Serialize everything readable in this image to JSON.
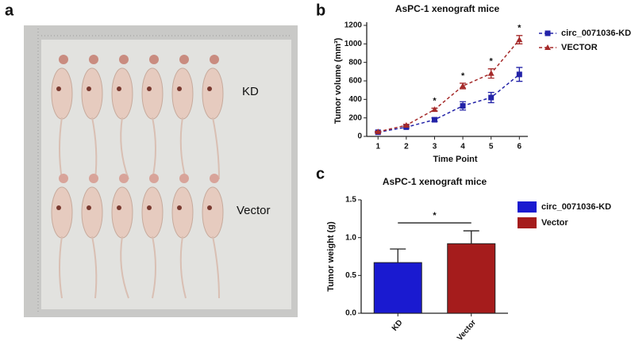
{
  "panels": [
    "a",
    "b",
    "c"
  ],
  "photo": {
    "labels": [
      "KD",
      "Vector"
    ]
  },
  "chart_data": [
    {
      "type": "line",
      "title": "AsPC-1 xenograft mice",
      "xlabel": "Time Point",
      "ylabel": "Tumor volume (mm³)",
      "x": [
        1,
        2,
        3,
        4,
        5,
        6
      ],
      "xlim": [
        0.6,
        6.3
      ],
      "xticks": [
        1,
        2,
        3,
        4,
        5,
        6
      ],
      "ylim": [
        0,
        1200
      ],
      "yticks": [
        0,
        200,
        400,
        600,
        800,
        1000,
        1200
      ],
      "series": [
        {
          "name": "circ_0071036-KD",
          "color": "#2323a8",
          "marker": "square",
          "values": [
            45,
            100,
            180,
            330,
            420,
            670
          ],
          "errors": [
            5,
            10,
            20,
            45,
            55,
            75
          ]
        },
        {
          "name": "VECTOR",
          "color": "#a52a2a",
          "marker": "triangle",
          "values": [
            50,
            120,
            290,
            545,
            680,
            1045
          ],
          "errors": [
            5,
            10,
            15,
            30,
            50,
            45
          ]
        }
      ],
      "annotations": [
        {
          "x": 3,
          "text": "*"
        },
        {
          "x": 4,
          "text": "*"
        },
        {
          "x": 5,
          "text": "*"
        },
        {
          "x": 6,
          "text": "*"
        }
      ]
    },
    {
      "type": "bar",
      "title": "AsPC-1 xenograft mice",
      "ylabel": "Tumor weight (g)",
      "categories": [
        "KD",
        "Vector"
      ],
      "ylim": [
        0,
        1.5
      ],
      "yticks": [
        {
          "value": 0,
          "label": "0.0"
        },
        {
          "value": 0.5,
          "label": "0.5"
        },
        {
          "value": 1,
          "label": "1.0"
        },
        {
          "value": 1.5,
          "label": "1.5"
        }
      ],
      "series": [
        {
          "name": "circ_0071036-KD",
          "color": "#1a1ad0",
          "values": [
            0.67,
            null
          ],
          "errors": [
            0.18,
            null
          ]
        },
        {
          "name": "Vector",
          "color": "#a51c1c",
          "values": [
            null,
            0.92
          ],
          "errors": [
            null,
            0.17
          ]
        }
      ],
      "annotation": "*"
    }
  ]
}
